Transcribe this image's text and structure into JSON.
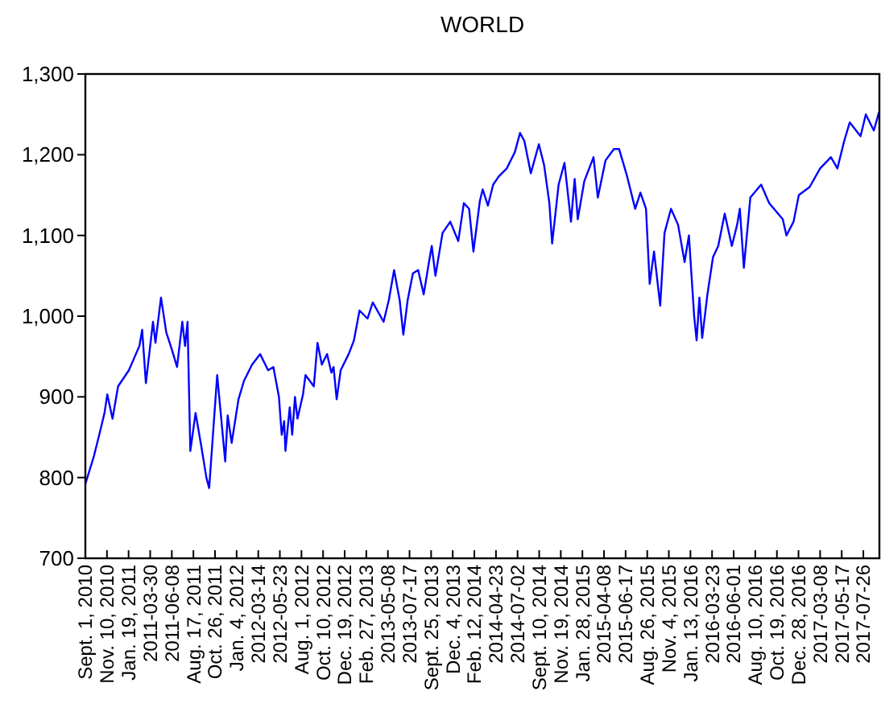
{
  "chart_data": {
    "type": "line",
    "title": "WORLD",
    "x": [
      "2010-09-01",
      "2010-09-29",
      "2010-10-16",
      "2010-11-02",
      "2010-11-11",
      "2010-11-28",
      "2010-12-16",
      "2011-01-20",
      "2011-02-23",
      "2011-03-04",
      "2011-03-16",
      "2011-04-08",
      "2011-04-16",
      "2011-05-04",
      "2011-05-21",
      "2011-06-07",
      "2011-06-25",
      "2011-07-12",
      "2011-07-21",
      "2011-07-29",
      "2011-08-07",
      "2011-08-24",
      "2011-09-11",
      "2011-09-28",
      "2011-10-07",
      "2011-11-02",
      "2011-11-28",
      "2011-12-06",
      "2011-12-19",
      "2012-01-10",
      "2012-01-28",
      "2012-02-23",
      "2012-03-20",
      "2012-04-15",
      "2012-05-02",
      "2012-05-20",
      "2012-05-29",
      "2012-06-06",
      "2012-06-10",
      "2012-06-24",
      "2012-07-02",
      "2012-07-11",
      "2012-07-19",
      "2012-08-06",
      "2012-08-14",
      "2012-09-10",
      "2012-09-22",
      "2012-10-06",
      "2012-10-23",
      "2012-11-06",
      "2012-11-13",
      "2012-11-23",
      "2012-12-06",
      "2013-01-01",
      "2013-01-18",
      "2013-02-05",
      "2013-03-03",
      "2013-03-20",
      "2013-04-24",
      "2013-05-11",
      "2013-05-28",
      "2013-06-15",
      "2013-06-27",
      "2013-07-11",
      "2013-07-28",
      "2013-08-14",
      "2013-09-01",
      "2013-09-18",
      "2013-09-27",
      "2013-10-09",
      "2013-11-01",
      "2013-11-26",
      "2013-12-22",
      "2014-01-09",
      "2014-01-26",
      "2014-02-09",
      "2014-03-02",
      "2014-03-11",
      "2014-03-28",
      "2014-04-14",
      "2014-05-02",
      "2014-05-28",
      "2014-06-23",
      "2014-07-10",
      "2014-07-24",
      "2014-08-14",
      "2014-09-09",
      "2014-09-26",
      "2014-10-13",
      "2014-10-22",
      "2014-11-12",
      "2014-12-01",
      "2014-12-22",
      "2015-01-03",
      "2015-01-13",
      "2015-02-03",
      "2015-03-05",
      "2015-03-19",
      "2015-04-13",
      "2015-05-10",
      "2015-05-27",
      "2015-06-22",
      "2015-07-18",
      "2015-08-04",
      "2015-08-22",
      "2015-09-03",
      "2015-09-17",
      "2015-10-07",
      "2015-10-21",
      "2015-11-11",
      "2015-12-04",
      "2015-12-25",
      "2016-01-08",
      "2016-01-25",
      "2016-02-02",
      "2016-02-11",
      "2016-02-20",
      "2016-03-08",
      "2016-03-26",
      "2016-04-12",
      "2016-05-03",
      "2016-05-26",
      "2016-06-12",
      "2016-06-21",
      "2016-07-04",
      "2016-07-25",
      "2016-08-29",
      "2016-09-24",
      "2016-11-07",
      "2016-11-19",
      "2016-12-12",
      "2016-12-29",
      "2017-02-02",
      "2017-03-08",
      "2017-04-12",
      "2017-05-03",
      "2017-05-25",
      "2017-06-12",
      "2017-07-17",
      "2017-08-03",
      "2017-08-29",
      "2017-09-15"
    ],
    "series": [
      {
        "color": "#0000ff",
        "values": [
          792,
          827,
          853,
          880,
          903,
          873,
          913,
          933,
          963,
          983,
          917,
          993,
          967,
          1023,
          980,
          960,
          937,
          993,
          963,
          993,
          833,
          880,
          840,
          800,
          787,
          927,
          820,
          877,
          843,
          897,
          920,
          940,
          953,
          933,
          937,
          900,
          853,
          870,
          833,
          887,
          853,
          900,
          873,
          903,
          927,
          913,
          967,
          940,
          953,
          930,
          937,
          897,
          933,
          953,
          970,
          1007,
          997,
          1017,
          993,
          1020,
          1057,
          1020,
          977,
          1020,
          1053,
          1057,
          1027,
          1067,
          1087,
          1050,
          1103,
          1117,
          1093,
          1140,
          1133,
          1080,
          1143,
          1157,
          1137,
          1163,
          1173,
          1183,
          1203,
          1227,
          1217,
          1177,
          1213,
          1187,
          1140,
          1090,
          1163,
          1190,
          1117,
          1170,
          1120,
          1167,
          1197,
          1147,
          1193,
          1207,
          1207,
          1173,
          1133,
          1153,
          1133,
          1040,
          1080,
          1013,
          1103,
          1133,
          1113,
          1067,
          1100,
          1000,
          970,
          1023,
          973,
          1027,
          1073,
          1087,
          1127,
          1087,
          1113,
          1133,
          1060,
          1147,
          1163,
          1140,
          1120,
          1100,
          1117,
          1150,
          1160,
          1183,
          1197,
          1183,
          1217,
          1240,
          1223,
          1250,
          1230,
          1253
        ]
      }
    ],
    "xlim": [
      "2010-09-01",
      "2017-09-16"
    ],
    "xticks": [
      {
        "value": "2010-09-01",
        "label": "Sept. 1, 2010"
      },
      {
        "value": "2010-11-10",
        "label": "Nov. 10, 2010"
      },
      {
        "value": "2011-01-19",
        "label": "Jan. 19, 2011"
      },
      {
        "value": "2011-03-30",
        "label": "2011-03-30"
      },
      {
        "value": "2011-06-08",
        "label": "2011-06-08"
      },
      {
        "value": "2011-08-17",
        "label": "Aug. 17, 2011"
      },
      {
        "value": "2011-10-26",
        "label": "Oct. 26, 2011"
      },
      {
        "value": "2012-01-04",
        "label": "Jan. 4, 2012"
      },
      {
        "value": "2012-03-14",
        "label": "2012-03-14"
      },
      {
        "value": "2012-05-23",
        "label": "2012-05-23"
      },
      {
        "value": "2012-08-01",
        "label": "Aug. 1, 2012"
      },
      {
        "value": "2012-10-10",
        "label": "Oct. 10, 2012"
      },
      {
        "value": "2012-12-19",
        "label": "Dec. 19, 2012"
      },
      {
        "value": "2013-02-27",
        "label": "Feb. 27, 2013"
      },
      {
        "value": "2013-05-08",
        "label": "2013-05-08"
      },
      {
        "value": "2013-07-17",
        "label": "2013-07-17"
      },
      {
        "value": "2013-09-25",
        "label": "Sept. 25, 2013"
      },
      {
        "value": "2013-12-04",
        "label": "Dec. 4, 2013"
      },
      {
        "value": "2014-02-12",
        "label": "Feb. 12, 2014"
      },
      {
        "value": "2014-04-23",
        "label": "2014-04-23"
      },
      {
        "value": "2014-07-02",
        "label": "2014-07-02"
      },
      {
        "value": "2014-09-10",
        "label": "Sept. 10, 2014"
      },
      {
        "value": "2014-11-19",
        "label": "Nov. 19, 2014"
      },
      {
        "value": "2015-01-28",
        "label": "Jan. 28, 2015"
      },
      {
        "value": "2015-04-08",
        "label": "2015-04-08"
      },
      {
        "value": "2015-06-17",
        "label": "2015-06-17"
      },
      {
        "value": "2015-08-26",
        "label": "Aug. 26, 2015"
      },
      {
        "value": "2015-11-04",
        "label": "Nov. 4, 2015"
      },
      {
        "value": "2016-01-13",
        "label": "Jan. 13, 2016"
      },
      {
        "value": "2016-03-23",
        "label": "2016-03-23"
      },
      {
        "value": "2016-06-01",
        "label": "2016-06-01"
      },
      {
        "value": "2016-08-10",
        "label": "Aug. 10, 2016"
      },
      {
        "value": "2016-10-19",
        "label": "Oct. 19, 2016"
      },
      {
        "value": "2016-12-28",
        "label": "Dec. 28, 2016"
      },
      {
        "value": "2017-03-08",
        "label": "2017-03-08"
      },
      {
        "value": "2017-05-17",
        "label": "2017-05-17"
      },
      {
        "value": "2017-07-26",
        "label": "2017-07-26"
      }
    ],
    "ylim": [
      700,
      1300
    ],
    "yticks": [
      {
        "value": 700,
        "label": "700"
      },
      {
        "value": 800,
        "label": "800"
      },
      {
        "value": 900,
        "label": "900"
      },
      {
        "value": 1000,
        "label": "1,000"
      },
      {
        "value": 1100,
        "label": "1,100"
      },
      {
        "value": 1200,
        "label": "1,200"
      },
      {
        "value": 1300,
        "label": "1,300"
      }
    ],
    "grid": false
  }
}
